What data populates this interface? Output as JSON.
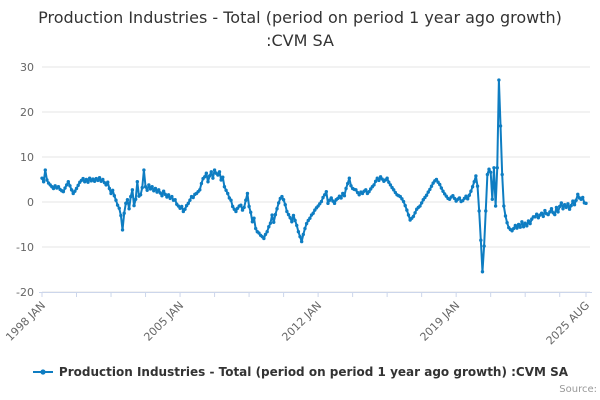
{
  "title": "Production Industries - Total (period on period 1 year ago growth) :CVM SA",
  "legend": {
    "label": "Production Industries - Total (period on period 1 year ago growth) :CVM SA"
  },
  "credits_label": "Source:",
  "colors": {
    "series": "#0e7dc2",
    "grid": "#e6e6e6",
    "axis_line": "#ccd6eb",
    "tick_label": "#666666",
    "title_text": "#333333",
    "credits_text": "#999999"
  },
  "chart_data": {
    "type": "line",
    "title": "Production Industries - Total (period on period 1 year ago growth) :CVM SA",
    "xlabel": "",
    "ylabel": "",
    "x_start": "1998 JAN",
    "x_end": "2025 AUG",
    "x_unit": "month",
    "ylim": [
      -20,
      30
    ],
    "y_ticks": [
      30,
      20,
      10,
      0,
      -10,
      -20
    ],
    "grid": "horizontal-only",
    "legend_position": "bottom-center",
    "x_tick_months": [
      0,
      21,
      42,
      63,
      84,
      105,
      126,
      147,
      168,
      189,
      210,
      231,
      252,
      273,
      294,
      315,
      331
    ],
    "x_axis_labels": [
      {
        "month": 0,
        "label": "1998 JAN"
      },
      {
        "month": 84,
        "label": "2005 JAN"
      },
      {
        "month": 168,
        "label": "2012 JAN"
      },
      {
        "month": 252,
        "label": "2019 JAN"
      },
      {
        "month": 331,
        "label": "2025 AUG"
      }
    ],
    "series": [
      {
        "name": "Production Industries - Total (period on period 1 year ago growth) :CVM SA",
        "start": "1998-01",
        "frequency": "monthly",
        "values": [
          5.3,
          4.5,
          7.1,
          4.9,
          4.2,
          3.8,
          3.4,
          3.0,
          3.6,
          3.1,
          3.4,
          2.8,
          2.5,
          2.3,
          3.1,
          3.8,
          4.5,
          3.6,
          2.7,
          1.9,
          2.4,
          3.0,
          3.7,
          4.4,
          4.8,
          5.2,
          4.5,
          5.0,
          4.4,
          5.3,
          4.7,
          5.1,
          4.6,
          5.2,
          4.8,
          5.4,
          4.6,
          5.0,
          4.3,
          3.8,
          4.4,
          3.0,
          1.9,
          2.6,
          1.4,
          0.4,
          -0.7,
          -1.4,
          -3.0,
          -6.2,
          -2.5,
          -0.3,
          0.5,
          -1.5,
          1.2,
          2.7,
          -0.8,
          0.6,
          4.5,
          1.3,
          1.6,
          3.2,
          7.1,
          3.4,
          2.6,
          3.8,
          2.9,
          3.4,
          2.5,
          3.0,
          2.2,
          2.7,
          2.0,
          1.4,
          2.4,
          1.7,
          1.1,
          1.6,
          0.8,
          1.2,
          0.4,
          0.5,
          -0.5,
          -0.9,
          -1.4,
          -1.0,
          -2.1,
          -1.6,
          -0.8,
          -0.3,
          0.4,
          1.2,
          1.0,
          1.7,
          1.9,
          2.3,
          2.7,
          4.1,
          5.2,
          5.6,
          6.4,
          4.5,
          5.8,
          6.7,
          5.3,
          7.1,
          6.4,
          6.0,
          6.7,
          4.9,
          5.5,
          3.4,
          2.6,
          1.9,
          0.9,
          0.4,
          -1.0,
          -1.6,
          -2.1,
          -1.4,
          -0.9,
          -0.7,
          -1.8,
          -1.2,
          0.4,
          1.9,
          -1.0,
          -2.3,
          -4.4,
          -3.6,
          -5.9,
          -6.6,
          -6.9,
          -7.4,
          -7.7,
          -8.1,
          -7.2,
          -6.6,
          -5.5,
          -4.7,
          -2.9,
          -4.5,
          -2.8,
          -1.5,
          -0.2,
          0.8,
          1.2,
          0.5,
          -0.6,
          -2.1,
          -2.8,
          -3.5,
          -4.4,
          -3.0,
          -4.1,
          -5.2,
          -6.6,
          -7.7,
          -8.8,
          -7.2,
          -5.9,
          -4.8,
          -4.1,
          -3.6,
          -2.9,
          -2.5,
          -1.8,
          -1.3,
          -0.9,
          -0.4,
          0.1,
          1.0,
          1.6,
          2.3,
          -0.3,
          0.4,
          0.9,
          0.2,
          -0.3,
          0.5,
          0.8,
          1.3,
          0.9,
          1.9,
          1.4,
          3.0,
          4.1,
          5.3,
          3.6,
          3.0,
          2.8,
          2.7,
          2.1,
          1.6,
          2.2,
          1.9,
          2.4,
          2.7,
          1.9,
          2.3,
          2.9,
          3.4,
          3.8,
          4.6,
          5.3,
          4.8,
          5.6,
          5.1,
          4.6,
          4.9,
          5.3,
          4.4,
          3.8,
          3.2,
          2.7,
          2.1,
          1.6,
          1.4,
          1.2,
          0.7,
          0.1,
          -0.8,
          -1.8,
          -2.9,
          -4.0,
          -3.6,
          -3.2,
          -2.4,
          -1.6,
          -1.2,
          -0.9,
          -0.2,
          0.5,
          1.0,
          1.5,
          2.2,
          2.8,
          3.5,
          4.2,
          4.7,
          5.0,
          4.4,
          3.9,
          3.1,
          2.4,
          1.8,
          1.3,
          0.8,
          0.6,
          1.1,
          1.4,
          0.8,
          0.2,
          0.6,
          0.9,
          0.1,
          0.3,
          0.8,
          1.3,
          0.7,
          1.5,
          2.4,
          3.4,
          4.5,
          5.8,
          3.5,
          -2.0,
          -8.5,
          -15.5,
          -9.8,
          -2.0,
          6.1,
          7.3,
          6.6,
          0.6,
          7.6,
          -0.9,
          7.6,
          27.1,
          16.9,
          6.1,
          -0.9,
          -3.1,
          -4.6,
          -5.7,
          -6.1,
          -6.4,
          -5.9,
          -5.2,
          -5.8,
          -5.0,
          -5.6,
          -4.4,
          -5.5,
          -4.7,
          -5.3,
          -4.2,
          -4.8,
          -3.8,
          -3.3,
          -3.3,
          -2.7,
          -3.5,
          -2.9,
          -2.5,
          -3.2,
          -1.9,
          -2.6,
          -2.8,
          -2.2,
          -1.5,
          -2.4,
          -2.8,
          -1.2,
          -2.2,
          -1.0,
          -0.2,
          -1.5,
          -0.6,
          -1.2,
          -0.4,
          -1.6,
          -0.8,
          0.2,
          -0.6,
          0.4,
          1.7,
          0.9,
          0.6,
          1.0,
          -0.2,
          -0.3
        ]
      }
    ]
  }
}
